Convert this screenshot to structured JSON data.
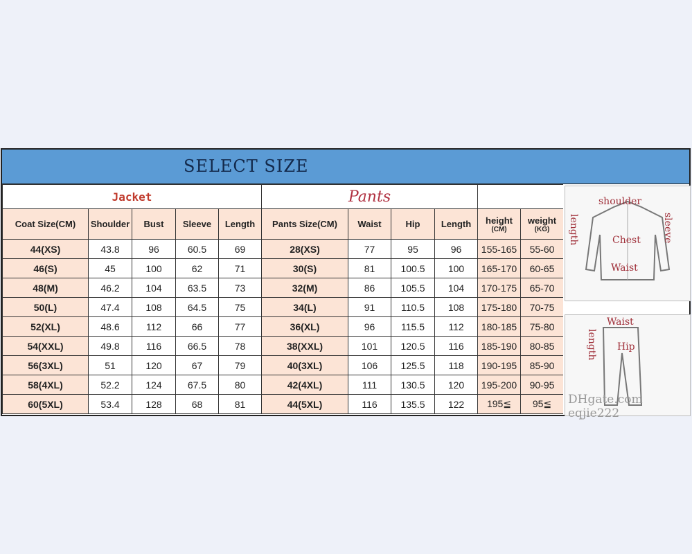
{
  "title": "SELECT SIZE",
  "groups": {
    "jacket": "Jacket",
    "pants": "Pants"
  },
  "headers": {
    "jacket": [
      "Coat Size(CM)",
      "Shoulder",
      "Bust",
      "Sleeve",
      "Length"
    ],
    "pants": [
      "Pants Size(CM)",
      "Waist",
      "Hip",
      "Length"
    ],
    "height": "height",
    "height_unit": "(CM)",
    "weight": "weight",
    "weight_unit": "(KG)"
  },
  "rows": [
    [
      "44(XS)",
      "43.8",
      "96",
      "60.5",
      "69",
      "28(XS)",
      "77",
      "95",
      "96",
      "155-165",
      "55-60"
    ],
    [
      "46(S)",
      "45",
      "100",
      "62",
      "71",
      "30(S)",
      "81",
      "100.5",
      "100",
      "165-170",
      "60-65"
    ],
    [
      "48(M)",
      "46.2",
      "104",
      "63.5",
      "73",
      "32(M)",
      "86",
      "105.5",
      "104",
      "170-175",
      "65-70"
    ],
    [
      "50(L)",
      "47.4",
      "108",
      "64.5",
      "75",
      "34(L)",
      "91",
      "110.5",
      "108",
      "175-180",
      "70-75"
    ],
    [
      "52(XL)",
      "48.6",
      "112",
      "66",
      "77",
      "36(XL)",
      "96",
      "115.5",
      "112",
      "180-185",
      "75-80"
    ],
    [
      "54(XXL)",
      "49.8",
      "116",
      "66.5",
      "78",
      "38(XXL)",
      "101",
      "120.5",
      "116",
      "185-190",
      "80-85"
    ],
    [
      "56(3XL)",
      "51",
      "120",
      "67",
      "79",
      "40(3XL)",
      "106",
      "125.5",
      "118",
      "190-195",
      "85-90"
    ],
    [
      "58(4XL)",
      "52.2",
      "124",
      "67.5",
      "80",
      "42(4XL)",
      "111",
      "130.5",
      "120",
      "195-200",
      "90-95"
    ],
    [
      "60(5XL)",
      "53.4",
      "128",
      "68",
      "81",
      "44(5XL)",
      "116",
      "135.5",
      "122",
      "195≦",
      "95≦"
    ]
  ],
  "diagram": {
    "jacket_labels": [
      "shoulder",
      "length",
      "sleeve",
      "Chest",
      "Waist"
    ],
    "pants_labels": [
      "Waist",
      "length",
      "Hip"
    ],
    "watermark": "DHgate.com  eqjie222"
  },
  "colors": {
    "title_bar": "#5b9bd5",
    "header_fill": "#fce4d6",
    "jacket_label": "#c0392b",
    "pants_label": "#b03040"
  }
}
